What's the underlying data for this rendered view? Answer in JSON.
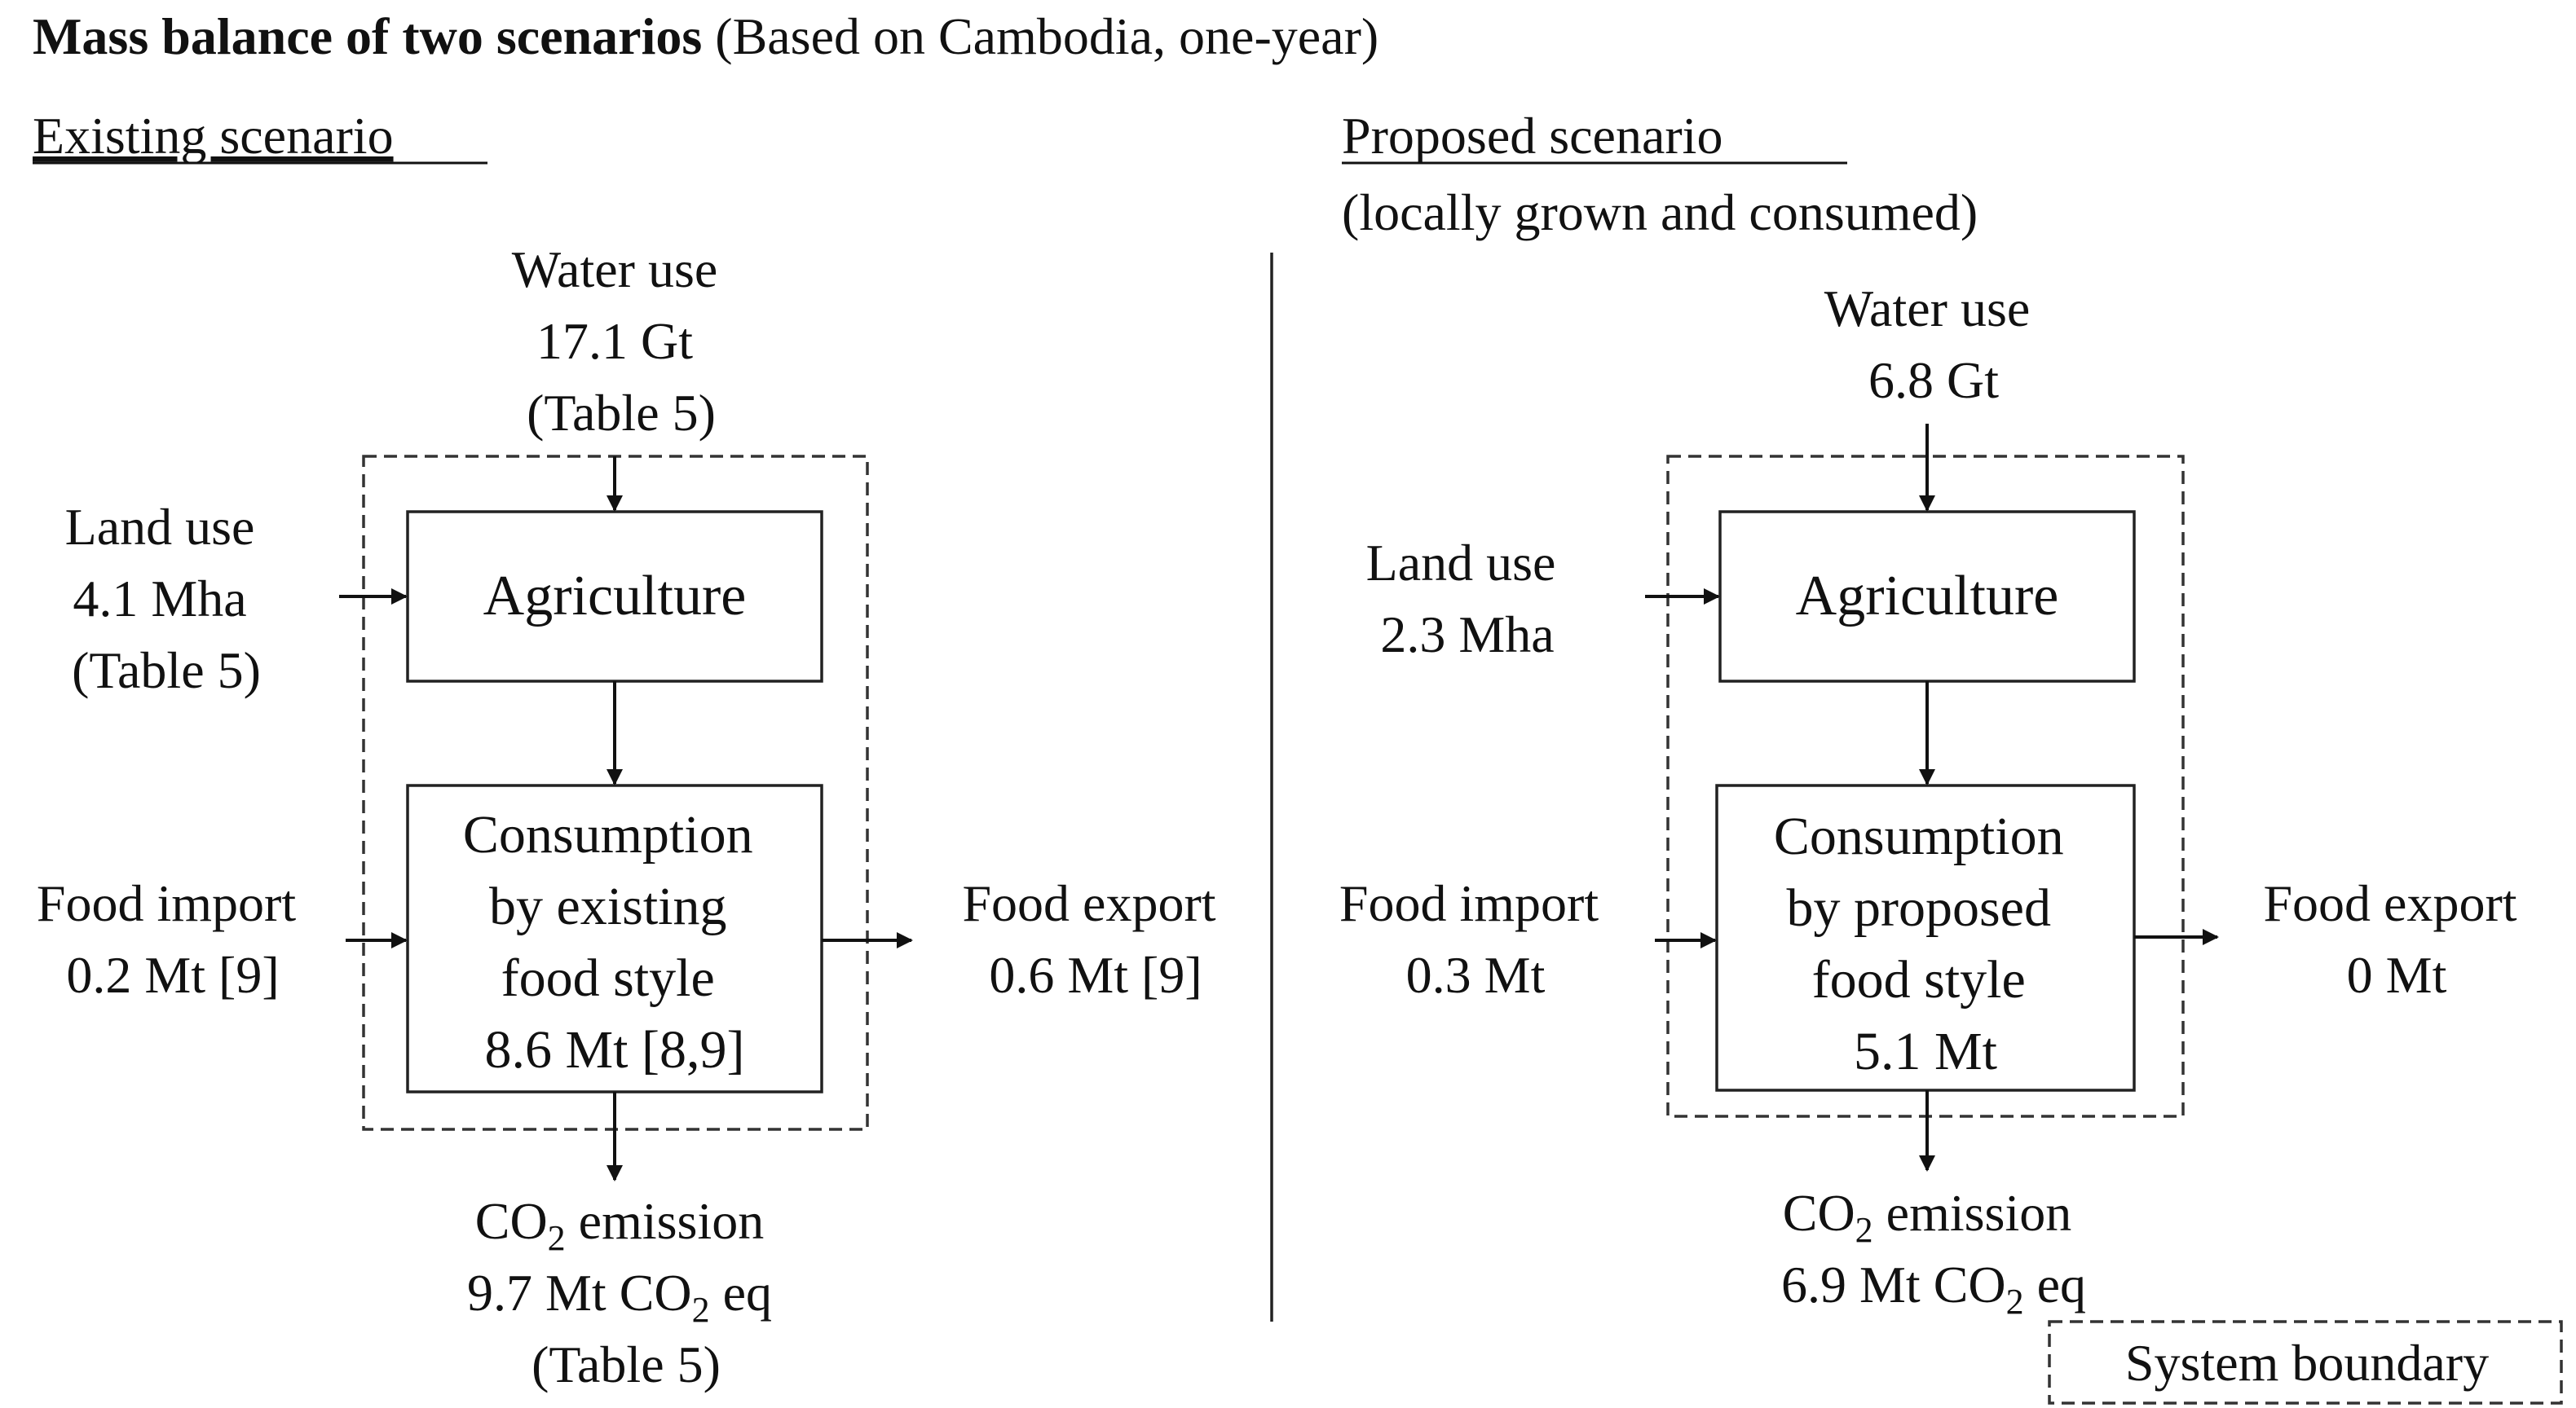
{
  "header": {
    "title_bold": "Mass balance of two scenarios",
    "title_rest": " (Based on Cambodia, one-year)"
  },
  "existing": {
    "heading": "Existing scenario",
    "water_use": [
      "Water use",
      "17.1 Gt",
      "(Table 5)"
    ],
    "land_use": [
      "Land use",
      "4.1 Mha",
      "(Table 5)"
    ],
    "agriculture": "Agriculture",
    "consumption": [
      "Consumption",
      "by existing",
      "food style",
      "8.6 Mt [8,9]"
    ],
    "food_import": [
      "Food import",
      "0.2 Mt [9]"
    ],
    "food_export": [
      "Food export",
      "0.6 Mt [9]"
    ],
    "co2": {
      "line1_pre": "CO",
      "line1_sub": "2",
      "line1_post": " emission",
      "line2_pre": "9.7 Mt CO",
      "line2_sub": "2",
      "line2_post": " eq",
      "line3": "(Table 5)"
    }
  },
  "proposed": {
    "heading": "Proposed scenario ",
    "subheading": "(locally grown and consumed)",
    "water_use": [
      "Water use",
      "6.8 Gt"
    ],
    "land_use": [
      "Land use",
      "2.3 Mha"
    ],
    "agriculture": "Agriculture",
    "consumption": [
      "Consumption",
      "by proposed",
      "food style",
      "5.1 Mt"
    ],
    "food_import": [
      "Food import",
      "0.3 Mt"
    ],
    "food_export": [
      "Food export",
      "0 Mt"
    ],
    "co2": {
      "line1_pre": "CO",
      "line1_sub": "2",
      "line1_post": " emission",
      "line2_pre": "6.9 Mt CO",
      "line2_sub": "2",
      "line2_post": " eq"
    }
  },
  "legend": {
    "system_boundary": "System boundary"
  }
}
